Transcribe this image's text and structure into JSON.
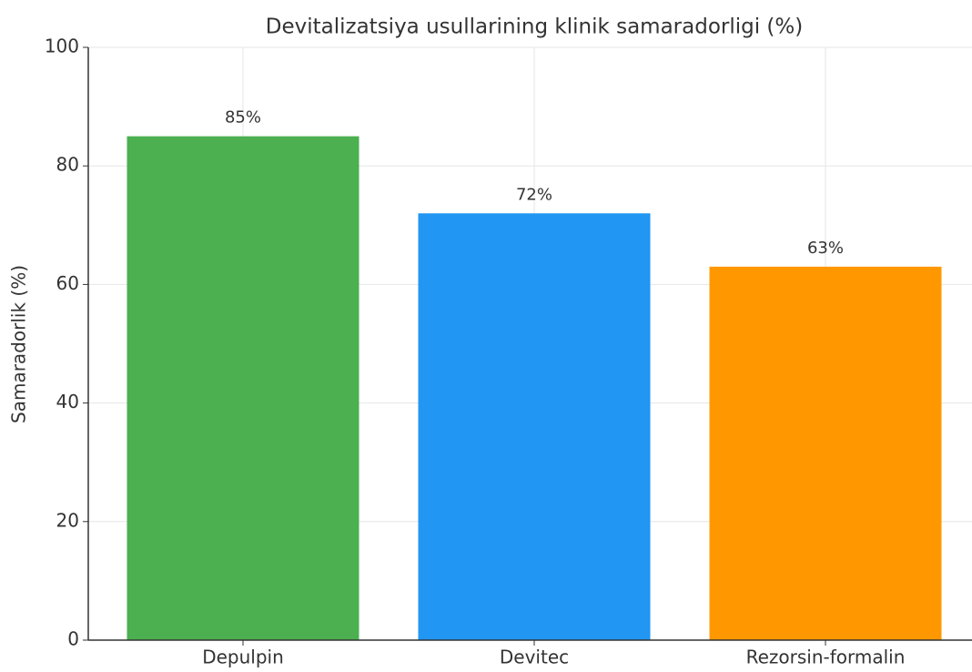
{
  "chart_data": {
    "type": "bar",
    "title": "Devitalizatsiya usullarining klinik samaradorligi (%)",
    "y_label": "Samaradorlik (%)",
    "categories": [
      "Depulpin",
      "Devitec",
      "Rezorsin-formalin"
    ],
    "values": [
      85,
      72,
      63
    ],
    "value_labels": [
      "85%",
      "72%",
      "63%"
    ],
    "colors": [
      "#4caf50",
      "#2196f3",
      "#ff9800"
    ],
    "ylim": [
      0,
      100
    ],
    "yticks": [
      0,
      20,
      40,
      60,
      80,
      100
    ],
    "grid": true
  }
}
